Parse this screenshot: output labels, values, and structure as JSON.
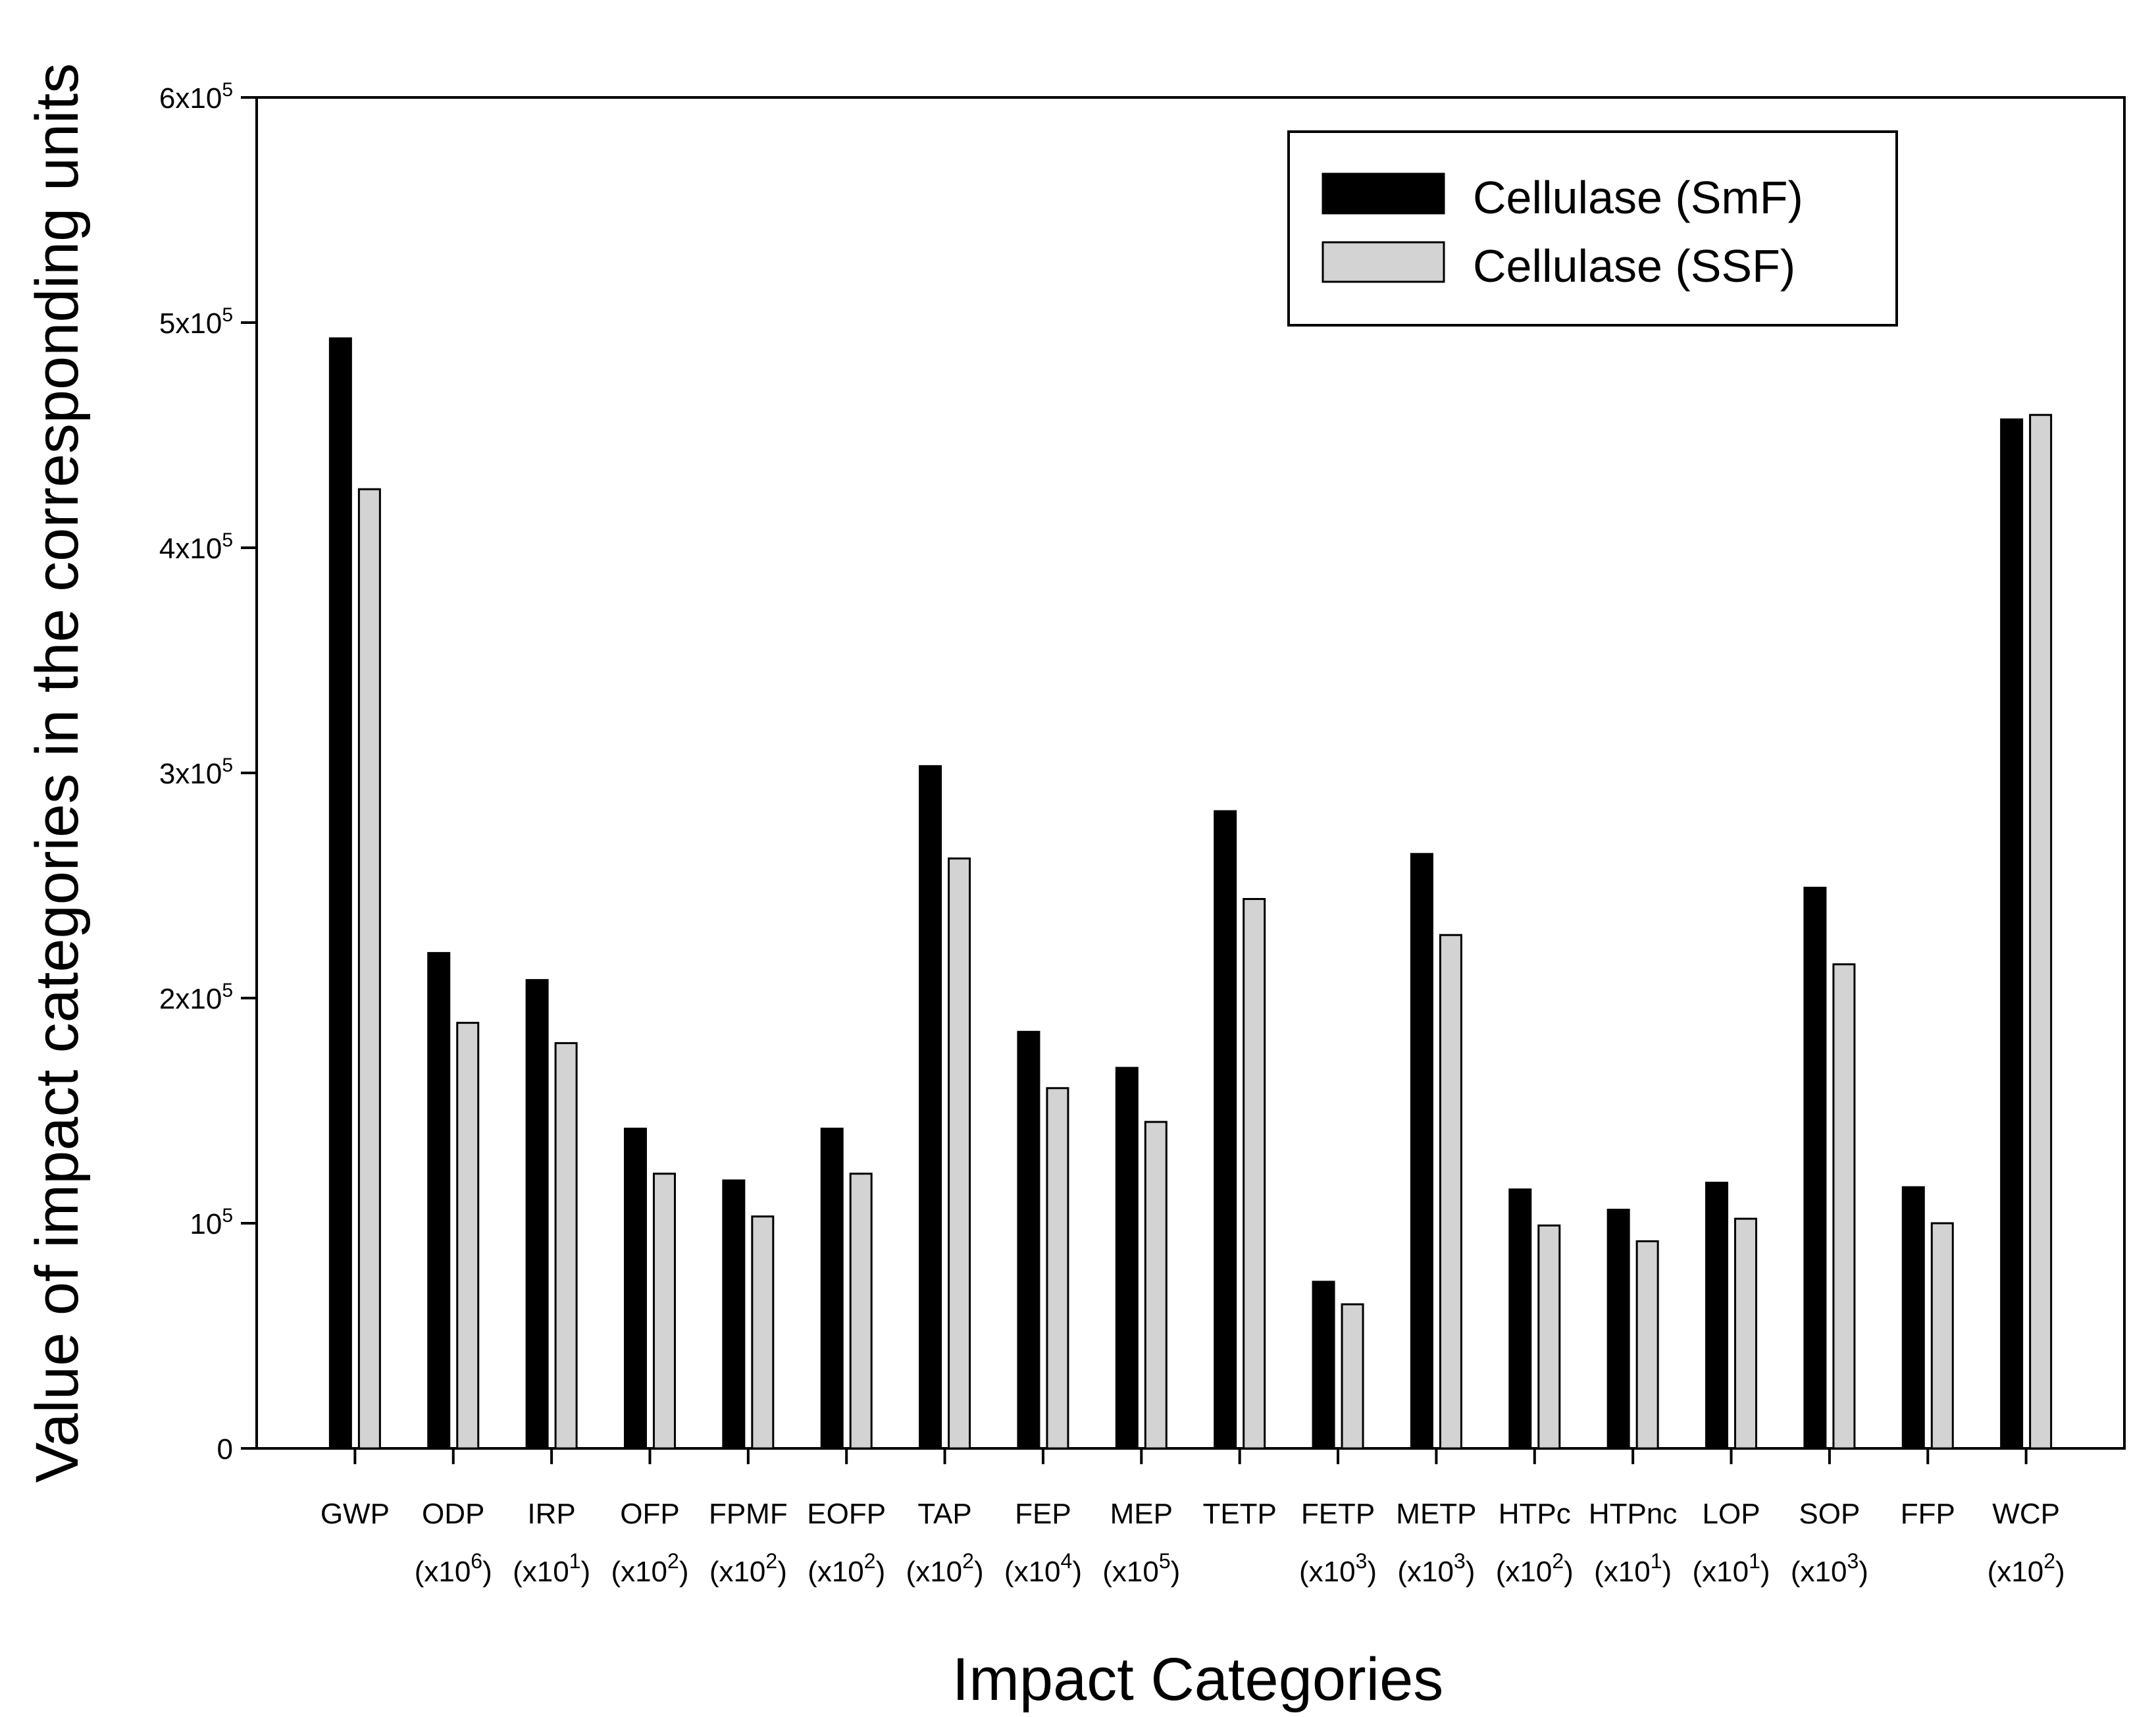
{
  "chart_data": {
    "type": "bar",
    "xlabel": "Impact Categories",
    "ylabel": "Value of impact categories in the corresponding units",
    "ylim": [
      0,
      600000
    ],
    "yticks": [
      {
        "value": 0,
        "label": "0"
      },
      {
        "value": 100000,
        "base": "10",
        "exp": "5"
      },
      {
        "value": 200000,
        "base": "2x10",
        "exp": "5"
      },
      {
        "value": 300000,
        "base": "3x10",
        "exp": "5"
      },
      {
        "value": 400000,
        "base": "4x10",
        "exp": "5"
      },
      {
        "value": 500000,
        "base": "5x10",
        "exp": "5"
      },
      {
        "value": 600000,
        "base": "6x10",
        "exp": "5"
      }
    ],
    "categories": [
      {
        "name": "GWP",
        "scale_base": "",
        "scale_exp": ""
      },
      {
        "name": "ODP",
        "scale_base": "(x10",
        "scale_exp": "6"
      },
      {
        "name": "IRP",
        "scale_base": "(x10",
        "scale_exp": "1"
      },
      {
        "name": "OFP",
        "scale_base": "(x10",
        "scale_exp": "2"
      },
      {
        "name": "FPMF",
        "scale_base": "(x10",
        "scale_exp": "2"
      },
      {
        "name": "EOFP",
        "scale_base": "(x10",
        "scale_exp": "2"
      },
      {
        "name": "TAP",
        "scale_base": "(x10",
        "scale_exp": "2"
      },
      {
        "name": "FEP",
        "scale_base": "(x10",
        "scale_exp": "4"
      },
      {
        "name": "MEP",
        "scale_base": "(x10",
        "scale_exp": "5"
      },
      {
        "name": "TETP",
        "scale_base": "",
        "scale_exp": ""
      },
      {
        "name": "FETP",
        "scale_base": "(x10",
        "scale_exp": "3"
      },
      {
        "name": "METP",
        "scale_base": "(x10",
        "scale_exp": "3"
      },
      {
        "name": "HTPc",
        "scale_base": "(x10",
        "scale_exp": "2"
      },
      {
        "name": "HTPnc",
        "scale_base": "(x10",
        "scale_exp": "1"
      },
      {
        "name": "LOP",
        "scale_base": "(x10",
        "scale_exp": "1"
      },
      {
        "name": "SOP",
        "scale_base": "(x10",
        "scale_exp": "3"
      },
      {
        "name": "FFP",
        "scale_base": "",
        "scale_exp": ""
      },
      {
        "name": "WCP",
        "scale_base": "(x10",
        "scale_exp": "2"
      }
    ],
    "series": [
      {
        "name": "Cellulase (SmF)",
        "color": "#000000",
        "values": [
          493000,
          220000,
          208000,
          142000,
          119000,
          142000,
          303000,
          185000,
          169000,
          283000,
          74000,
          264000,
          115000,
          106000,
          118000,
          249000,
          116000,
          457000
        ]
      },
      {
        "name": "Cellulase (SSF)",
        "color": "#d3d3d3",
        "values": [
          426000,
          189000,
          180000,
          122000,
          103000,
          122000,
          262000,
          160000,
          145000,
          244000,
          64000,
          228000,
          99000,
          92000,
          102000,
          215000,
          100000,
          459000
        ]
      }
    ],
    "legend_position": "top-right",
    "grid": false
  }
}
